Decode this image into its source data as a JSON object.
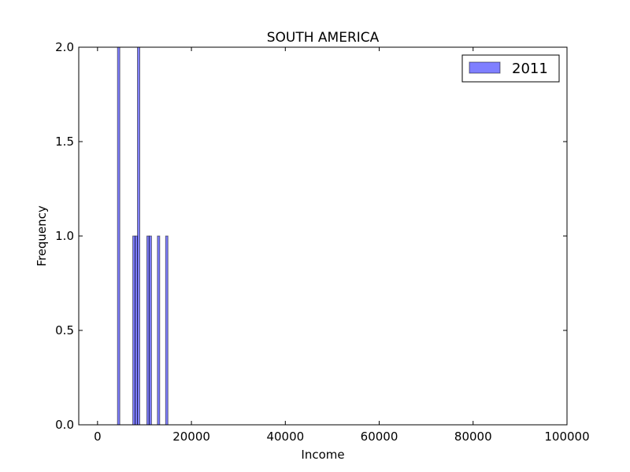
{
  "chart_data": {
    "type": "bar",
    "title": "SOUTH AMERICA",
    "xlabel": "Income",
    "ylabel": "Frequency",
    "xlim": [
      -4000,
      100000
    ],
    "ylim": [
      0,
      2
    ],
    "x_ticks": [
      0,
      20000,
      40000,
      60000,
      80000,
      100000
    ],
    "x_tick_labels": [
      "0",
      "20000",
      "40000",
      "60000",
      "80000",
      "100000"
    ],
    "y_ticks": [
      0,
      0.5,
      1,
      1.5,
      2
    ],
    "y_tick_labels": [
      "0.0",
      "0.5",
      "1.0",
      "1.5",
      "2.0"
    ],
    "bin_width": 500,
    "series": [
      {
        "name": "2011",
        "color": "#0000ff",
        "opacity": 0.5,
        "bins": [
          {
            "x0": 4250,
            "x1": 4750,
            "count": 2
          },
          {
            "x0": 7500,
            "x1": 8000,
            "count": 1
          },
          {
            "x0": 8000,
            "x1": 8500,
            "count": 1
          },
          {
            "x0": 8500,
            "x1": 9000,
            "count": 2
          },
          {
            "x0": 10500,
            "x1": 11000,
            "count": 1
          },
          {
            "x0": 11000,
            "x1": 11500,
            "count": 1
          },
          {
            "x0": 12750,
            "x1": 13250,
            "count": 1
          },
          {
            "x0": 14500,
            "x1": 15000,
            "count": 1
          }
        ]
      }
    ],
    "legend": {
      "location": "top-right",
      "entries": [
        "2011"
      ]
    },
    "grid": false
  }
}
